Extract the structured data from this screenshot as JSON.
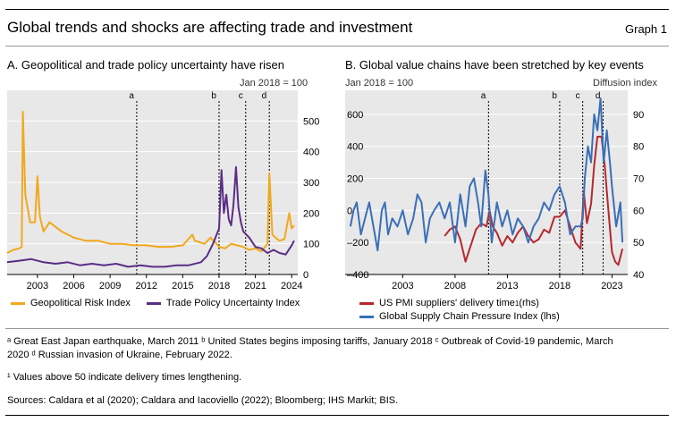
{
  "header": {
    "title": "Global trends and shocks are affecting trade and investment",
    "graph_label": "Graph 1"
  },
  "colors": {
    "gpr": "#F2A81D",
    "tpu": "#5B2D86",
    "pmi": "#B5282E",
    "gscpi": "#3A6FB7",
    "panel_bg": "#E8E8E8"
  },
  "chart_data": [
    {
      "type": "line",
      "title": "A. Geopolitical and trade policy uncertainty have risen",
      "unit": "Jan 2018 = 100",
      "x_ticks": [
        "2003",
        "2006",
        "2009",
        "2012",
        "2015",
        "2018",
        "2021",
        "2024"
      ],
      "ylim": [
        0,
        600
      ],
      "y_ticks_right": [
        "0",
        "100",
        "200",
        "300",
        "400",
        "500"
      ],
      "xlim": [
        2000.5,
        2024.5
      ],
      "grid": true,
      "legend_position": "bottom",
      "events": [
        {
          "label": "a",
          "x": 2011.2
        },
        {
          "label": "b",
          "x": 2018.0
        },
        {
          "label": "c",
          "x": 2020.2
        },
        {
          "label": "d",
          "x": 2022.15
        }
      ],
      "series": [
        {
          "name": "Geopolitical Risk Index",
          "axis": "right",
          "x": [
            2000.5,
            2001.0,
            2001.5,
            2001.7,
            2001.8,
            2002.0,
            2002.4,
            2002.8,
            2003.0,
            2003.2,
            2003.5,
            2004.0,
            2005.0,
            2006.0,
            2007.0,
            2008.0,
            2009.0,
            2010.0,
            2011.0,
            2012.0,
            2013.0,
            2014.0,
            2015.0,
            2015.8,
            2016.0,
            2016.8,
            2017.3,
            2017.8,
            2018.0,
            2018.5,
            2019.0,
            2019.5,
            2020.0,
            2020.5,
            2021.0,
            2021.5,
            2022.0,
            2022.15,
            2022.4,
            2022.8,
            2023.0,
            2023.4,
            2023.8,
            2024.0,
            2024.2
          ],
          "y": [
            70,
            80,
            85,
            90,
            530,
            260,
            170,
            170,
            320,
            190,
            140,
            170,
            140,
            120,
            110,
            110,
            100,
            100,
            95,
            95,
            90,
            90,
            95,
            130,
            110,
            100,
            120,
            100,
            90,
            85,
            100,
            95,
            90,
            80,
            85,
            75,
            100,
            330,
            130,
            115,
            110,
            115,
            200,
            150,
            160
          ]
        },
        {
          "name": "Trade Policy Uncertainty Index",
          "axis": "right",
          "x": [
            2000.5,
            2001.5,
            2002.5,
            2003.5,
            2004.5,
            2005.5,
            2006.5,
            2007.5,
            2008.5,
            2009.5,
            2010.5,
            2011.5,
            2012.5,
            2013.5,
            2014.5,
            2015.5,
            2016.5,
            2017.0,
            2017.5,
            2018.0,
            2018.2,
            2018.4,
            2018.6,
            2018.8,
            2019.0,
            2019.2,
            2019.4,
            2019.6,
            2019.8,
            2020.0,
            2020.5,
            2021.0,
            2021.5,
            2022.0,
            2022.5,
            2023.0,
            2023.5,
            2024.0,
            2024.2
          ],
          "y": [
            40,
            45,
            50,
            40,
            35,
            40,
            30,
            35,
            30,
            35,
            25,
            30,
            25,
            25,
            30,
            30,
            40,
            60,
            100,
            150,
            340,
            200,
            260,
            180,
            160,
            230,
            350,
            220,
            170,
            140,
            120,
            90,
            85,
            70,
            80,
            70,
            65,
            95,
            110
          ]
        }
      ]
    },
    {
      "type": "line",
      "title": "B. Global value chains have been stretched by key events",
      "unit_left": "Jan 2018 = 100",
      "unit_right": "Diffusion index",
      "x_ticks": [
        "2003",
        "2008",
        "2013",
        "2018",
        "2023"
      ],
      "ylim_left": [
        -400,
        750
      ],
      "y_ticks_left": [
        "–400",
        "–200",
        "0",
        "200",
        "400",
        "600"
      ],
      "ylim_right": [
        40,
        97.5
      ],
      "y_ticks_right": [
        "40",
        "50",
        "60",
        "70",
        "80",
        "90"
      ],
      "xlim": [
        1997.5,
        2024.5
      ],
      "grid": true,
      "legend_position": "bottom",
      "events": [
        {
          "label": "a",
          "x": 2011.2
        },
        {
          "label": "b",
          "x": 2018.0
        },
        {
          "label": "c",
          "x": 2020.2
        },
        {
          "label": "d",
          "x": 2022.15
        }
      ],
      "series": [
        {
          "name": "US PMI suppliers' delivery time",
          "name_sup": "1",
          "name_suffix": "(rhs)",
          "axis": "right",
          "x": [
            2007.0,
            2007.5,
            2008.0,
            2008.5,
            2009.0,
            2009.5,
            2010.0,
            2010.5,
            2011.0,
            2011.3,
            2011.6,
            2012.0,
            2012.5,
            2013.0,
            2013.5,
            2014.0,
            2014.5,
            2015.0,
            2015.5,
            2016.0,
            2016.5,
            2017.0,
            2017.5,
            2018.0,
            2018.5,
            2019.0,
            2019.5,
            2020.0,
            2020.3,
            2020.6,
            2021.0,
            2021.3,
            2021.6,
            2022.0,
            2022.3,
            2022.6,
            2023.0,
            2023.3,
            2023.6,
            2024.0
          ],
          "y": [
            52,
            54,
            55,
            51,
            44,
            49,
            54,
            56,
            55,
            60,
            55,
            53,
            49,
            52,
            50,
            53,
            55,
            52,
            50,
            51,
            54,
            53,
            58,
            58,
            60,
            55,
            50,
            48,
            66,
            56,
            62,
            74,
            83,
            83,
            74,
            62,
            47,
            44,
            43,
            48
          ]
        },
        {
          "name": "Global Supply Chain Pressure Index",
          "name_suffix": "(lhs)",
          "axis": "left",
          "x": [
            1998.0,
            1998.3,
            1998.6,
            1999.0,
            1999.4,
            1999.8,
            2000.2,
            2000.6,
            2001.0,
            2001.3,
            2001.6,
            2002.0,
            2002.5,
            2003.0,
            2003.5,
            2004.0,
            2004.4,
            2004.8,
            2005.2,
            2005.6,
            2006.0,
            2006.5,
            2007.0,
            2007.5,
            2008.0,
            2008.5,
            2009.0,
            2009.4,
            2009.8,
            2010.2,
            2010.5,
            2010.9,
            2011.2,
            2011.5,
            2012.0,
            2012.5,
            2013.0,
            2013.5,
            2014.0,
            2014.5,
            2015.0,
            2015.5,
            2016.0,
            2016.5,
            2017.0,
            2017.5,
            2018.0,
            2018.5,
            2019.0,
            2019.5,
            2020.0,
            2020.2,
            2020.4,
            2020.7,
            2021.0,
            2021.3,
            2021.6,
            2021.9,
            2022.2,
            2022.5,
            2022.8,
            2023.0,
            2023.4,
            2023.8,
            2024.0
          ],
          "y": [
            -100,
            0,
            50,
            -150,
            -50,
            50,
            -100,
            -250,
            0,
            50,
            -150,
            -50,
            -100,
            0,
            -150,
            -50,
            100,
            50,
            -200,
            -50,
            0,
            50,
            -50,
            50,
            -200,
            100,
            -100,
            150,
            200,
            50,
            -100,
            250,
            100,
            -200,
            50,
            -100,
            0,
            -150,
            -50,
            -100,
            -200,
            -100,
            -50,
            50,
            0,
            100,
            150,
            50,
            -150,
            -100,
            -100,
            -50,
            200,
            400,
            300,
            600,
            500,
            700,
            300,
            500,
            300,
            150,
            -100,
            50,
            -200
          ]
        }
      ]
    }
  ],
  "legend_a": [
    {
      "label": "Geopolitical Risk Index"
    },
    {
      "label": "Trade Policy Uncertainty Index"
    }
  ],
  "legend_b": [
    {
      "label": "US PMI suppliers' delivery time",
      "sup": "1",
      "suffix": "(rhs)"
    },
    {
      "label": "Global Supply Chain Pressure Index (lhs)"
    }
  ],
  "footnotes": {
    "events_line": "ᵃ Great East Japan earthquake, March 2011   ᵇ United States begins imposing tariffs, January 2018   ᶜ Outbreak of Covid-19 pandemic, March",
    "events_line2": "2020   ᵈ Russian invasion of Ukraine, February 2022.",
    "note1": "¹ Values above 50 indicate delivery times lengthening.",
    "sources": "Sources: Caldara et al (2020); Caldara and Iacoviello (2022); Bloomberg; IHS Markit; BIS."
  }
}
